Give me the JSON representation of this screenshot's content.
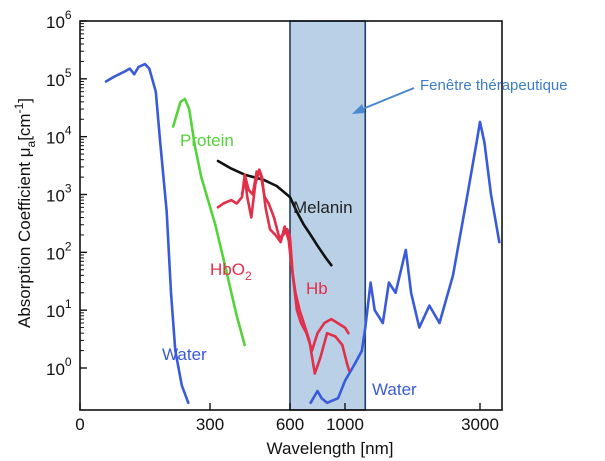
{
  "chart_data": {
    "type": "line",
    "title": "",
    "xlabel": "Wavelength [nm]",
    "ylabel_pre": "Absorption Coefficient μ",
    "ylabel_sub": "a",
    "ylabel_post": "[cm",
    "ylabel_sup": "-1",
    "ylabel_end": "]",
    "x_ticks": [
      {
        "label": "0",
        "x": 0
      },
      {
        "label": "300",
        "x": 300
      },
      {
        "label": "600",
        "x": 600
      },
      {
        "label": "1000",
        "x": 1000
      },
      {
        "label": "3000",
        "x": 3000
      }
    ],
    "y_ticks": [
      {
        "base": "10",
        "exp": "0",
        "value": 1
      },
      {
        "base": "10",
        "exp": "1",
        "value": 10
      },
      {
        "base": "10",
        "exp": "2",
        "value": 100
      },
      {
        "base": "10",
        "exp": "3",
        "value": 1000
      },
      {
        "base": "10",
        "exp": "4",
        "value": 10000
      },
      {
        "base": "10",
        "exp": "5",
        "value": 100000
      },
      {
        "base": "10",
        "exp": "6",
        "value": 1000000
      }
    ],
    "ylim": [
      0.2,
      1000000
    ],
    "yscale": "log",
    "grid": false,
    "therapeutic_window": {
      "x_start": 600,
      "x_end": 1300,
      "color": "#b9d0e6",
      "edge": "#1f3f6b"
    },
    "series": [
      {
        "name": "Water",
        "color": "#3a5bd9",
        "segments": [
          [
            [
              60,
              90000
            ],
            [
              80,
              110000
            ],
            [
              100,
              130000
            ],
            [
              115,
              150000
            ],
            [
              125,
              120000
            ],
            [
              135,
              160000
            ],
            [
              150,
              180000
            ],
            [
              160,
              150000
            ],
            [
              175,
              60000
            ],
            [
              185,
              8000
            ],
            [
              200,
              500
            ],
            [
              210,
              20
            ],
            [
              220,
              2
            ],
            [
              235,
              0.5
            ],
            [
              250,
              0.25
            ]
          ],
          [
            [
              750,
              0.25
            ],
            [
              800,
              0.4
            ],
            [
              830,
              0.3
            ],
            [
              870,
              0.25
            ],
            [
              950,
              0.3
            ],
            [
              1000,
              0.6
            ],
            [
              1150,
              1.2
            ],
            [
              1250,
              2
            ],
            [
              1300,
              5
            ],
            [
              1380,
              30
            ],
            [
              1440,
              10
            ],
            [
              1560,
              6
            ],
            [
              1650,
              30
            ],
            [
              1750,
              20
            ],
            [
              1900,
              110
            ],
            [
              1980,
              20
            ],
            [
              2100,
              5
            ],
            [
              2250,
              12
            ],
            [
              2400,
              6
            ],
            [
              2600,
              40
            ],
            [
              2800,
              800
            ],
            [
              2950,
              8000
            ],
            [
              3000,
              18000
            ],
            [
              3080,
              8000
            ],
            [
              3200,
              1000
            ],
            [
              3350,
              150
            ]
          ]
        ]
      },
      {
        "name": "Protein",
        "color": "#55d33a",
        "segments": [
          [
            [
              215,
              15000
            ],
            [
              232,
              40000
            ],
            [
              242,
              45000
            ],
            [
              252,
              30000
            ],
            [
              265,
              7000
            ],
            [
              280,
              2000
            ],
            [
              320,
              300
            ],
            [
              360,
              50
            ],
            [
              400,
              8
            ],
            [
              430,
              2.5
            ]
          ]
        ]
      },
      {
        "name": "Melanin",
        "color": "#111111",
        "segments": [
          [
            [
              330,
              3800
            ],
            [
              380,
              2800
            ],
            [
              430,
              2200
            ],
            [
              500,
              1800
            ],
            [
              550,
              1400
            ],
            [
              600,
              900
            ],
            [
              650,
              500
            ],
            [
              700,
              300
            ],
            [
              750,
              200
            ],
            [
              800,
              130
            ],
            [
              860,
              80
            ],
            [
              900,
              60
            ]
          ]
        ]
      },
      {
        "name": "HbO₂",
        "label_base": "HbO",
        "label_sub": "2",
        "color": "#e0304a",
        "segments": [
          [
            [
              330,
              600
            ],
            [
              350,
              700
            ],
            [
              380,
              800
            ],
            [
              400,
              700
            ],
            [
              420,
              900
            ],
            [
              430,
              2200
            ],
            [
              445,
              1200
            ],
            [
              460,
              1000
            ],
            [
              475,
              2500
            ],
            [
              490,
              2200
            ],
            [
              505,
              900
            ],
            [
              520,
              700
            ],
            [
              540,
              400
            ],
            [
              560,
              180
            ],
            [
              575,
              200
            ],
            [
              590,
              250
            ],
            [
              600,
              180
            ],
            [
              620,
              40
            ],
            [
              650,
              10
            ],
            [
              680,
              6
            ],
            [
              720,
              4
            ],
            [
              760,
              2
            ],
            [
              800,
              4
            ],
            [
              850,
              6
            ],
            [
              900,
              7
            ],
            [
              1000,
              5
            ],
            [
              1050,
              4
            ]
          ],
          [
            [
              420,
              1000
            ],
            [
              432,
              1800
            ],
            [
              440,
              900
            ],
            [
              455,
              400
            ],
            [
              470,
              1500
            ],
            [
              485,
              2700
            ],
            [
              495,
              2000
            ],
            [
              508,
              600
            ],
            [
              525,
              250
            ],
            [
              545,
              200
            ],
            [
              565,
              150
            ],
            [
              580,
              280
            ],
            [
              595,
              160
            ],
            [
              610,
              60
            ],
            [
              640,
              20
            ],
            [
              670,
              10
            ],
            [
              700,
              6
            ],
            [
              740,
              3
            ],
            [
              780,
              0.8
            ],
            [
              820,
              1.5
            ],
            [
              870,
              4
            ],
            [
              930,
              3.5
            ],
            [
              980,
              2.5
            ],
            [
              1030,
              1.2
            ],
            [
              1060,
              0.9
            ]
          ]
        ]
      }
    ],
    "labels": {
      "protein": "Protein",
      "melanin": "Melanin",
      "hb": "Hb",
      "water_left": "Water",
      "water_right": "Water"
    },
    "annotation": "Fenêtre thérapeutique"
  }
}
